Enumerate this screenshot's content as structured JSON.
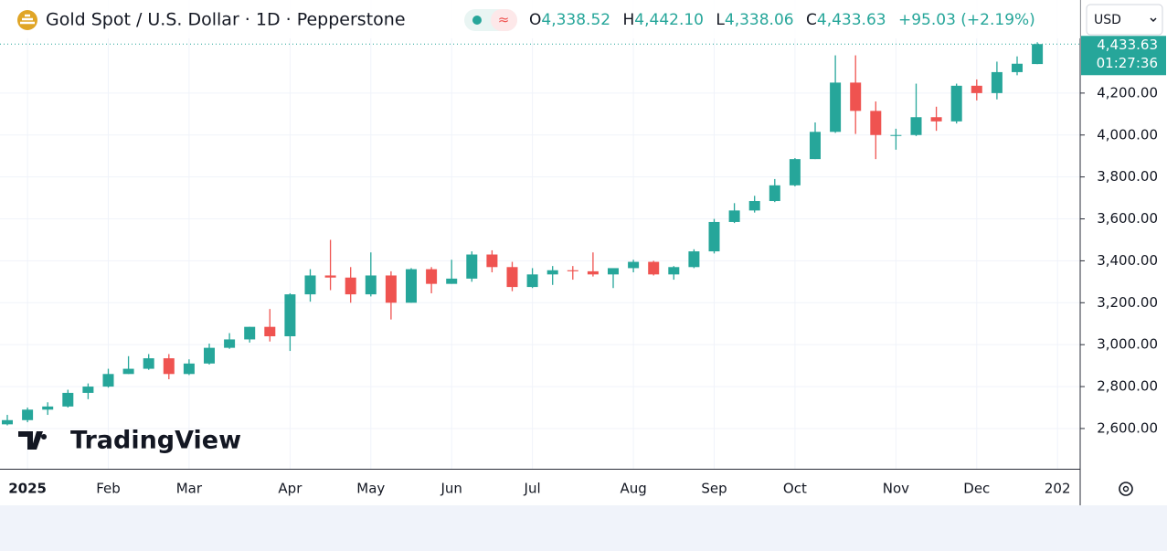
{
  "header": {
    "title": "Gold Spot / U.S. Dollar · 1D · Pepperstone",
    "open_label": "O",
    "open": "4,338.52",
    "high_label": "H",
    "high": "4,442.10",
    "low_label": "L",
    "low": "4,338.06",
    "close_label": "C",
    "close": "4,433.63",
    "change": "+95.03 (+2.19%)",
    "currency": "USD",
    "logo": "TradingView",
    "countdown": "01:27:36"
  },
  "chart_data": {
    "type": "candlestick",
    "categories": [
      null,
      "2025",
      null,
      null,
      null,
      "Feb",
      null,
      null,
      null,
      "Mar",
      null,
      null,
      null,
      null,
      "Apr",
      null,
      null,
      null,
      "May",
      null,
      null,
      null,
      "Jun",
      null,
      null,
      null,
      "Jul",
      null,
      null,
      null,
      null,
      "Aug",
      null,
      null,
      null,
      "Sep",
      null,
      null,
      null,
      "Oct",
      null,
      null,
      null,
      null,
      "Nov",
      null,
      null,
      null,
      "Dec",
      null,
      null,
      null,
      "202"
    ],
    "series": [
      {
        "up_color": "#26a69a",
        "down_color": "#ef5350",
        "open": [
          2620,
          2640,
          2690,
          2705,
          2770,
          2800,
          2860,
          2885,
          2935,
          2860,
          2910,
          2985,
          3025,
          3085,
          3040,
          3240,
          3330,
          3320,
          3240,
          3330,
          3200,
          3360,
          3290,
          3315,
          3430,
          3370,
          3275,
          3335,
          3355,
          3350,
          3335,
          3365,
          3395,
          3335,
          3370,
          3445,
          3585,
          3640,
          3685,
          3760,
          3885,
          4015,
          4250,
          4115,
          4000,
          4000,
          4085,
          4065,
          4235,
          4200,
          4300,
          4338.52,
          null
        ],
        "high": [
          2665,
          2700,
          2725,
          2785,
          2815,
          2885,
          2945,
          2955,
          2955,
          2930,
          3005,
          3055,
          3085,
          3170,
          3245,
          3360,
          3500,
          3370,
          3440,
          3350,
          3365,
          3370,
          3405,
          3445,
          3450,
          3395,
          3365,
          3375,
          3375,
          3440,
          3355,
          3405,
          3400,
          3375,
          3455,
          3600,
          3675,
          3710,
          3790,
          3890,
          4060,
          4380,
          4380,
          4160,
          4030,
          4245,
          4135,
          4245,
          4265,
          4350,
          4375,
          4442.1,
          null
        ],
        "low": [
          2615,
          2630,
          2665,
          2700,
          2740,
          2795,
          2860,
          2880,
          2835,
          2855,
          2905,
          2980,
          3010,
          3015,
          2970,
          3205,
          3260,
          3200,
          3230,
          3120,
          3200,
          3245,
          3290,
          3300,
          3345,
          3255,
          3270,
          3285,
          3310,
          3325,
          3270,
          3345,
          3330,
          3310,
          3365,
          3435,
          3580,
          3630,
          3680,
          3755,
          3885,
          4010,
          4005,
          3885,
          3930,
          3995,
          4020,
          4055,
          4165,
          4170,
          4285,
          4338.06,
          null
        ],
        "close": [
          2640,
          2690,
          2705,
          2770,
          2800,
          2860,
          2885,
          2935,
          2860,
          2910,
          2985,
          3025,
          3085,
          3040,
          3240,
          3330,
          3320,
          3240,
          3330,
          3200,
          3360,
          3290,
          3315,
          3430,
          3370,
          3275,
          3335,
          3355,
          3350,
          3335,
          3365,
          3395,
          3335,
          3370,
          3445,
          3585,
          3640,
          3685,
          3760,
          3885,
          4015,
          4250,
          4115,
          4000,
          4000,
          4085,
          4065,
          4235,
          4200,
          4300,
          4340,
          4433.63,
          null
        ]
      }
    ],
    "ylim": [
      2408,
      4644
    ],
    "yticks": [
      {
        "value": 2600,
        "label": "2,600.00"
      },
      {
        "value": 2800,
        "label": "2,800.00"
      },
      {
        "value": 3000,
        "label": "3,000.00"
      },
      {
        "value": 3200,
        "label": "3,200.00"
      },
      {
        "value": 3400,
        "label": "3,400.00"
      },
      {
        "value": 3600,
        "label": "3,600.00"
      },
      {
        "value": 3800,
        "label": "3,800.00"
      },
      {
        "value": 4000,
        "label": "4,000.00"
      },
      {
        "value": 4200,
        "label": "4,200.00"
      }
    ],
    "last_price": {
      "value": 4433.63,
      "label": "4,433.63"
    },
    "grid": true
  }
}
